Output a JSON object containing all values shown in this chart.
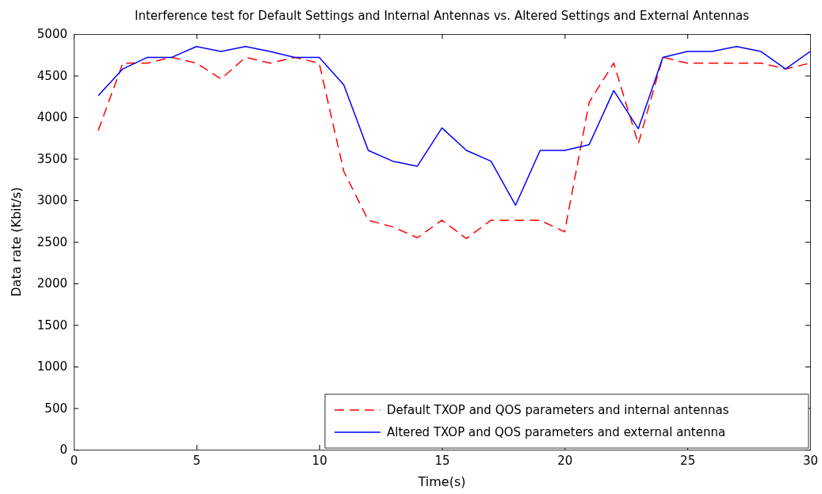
{
  "chart_data": {
    "type": "line",
    "title": "Interference test for Default Settings and Internal Antennas vs. Altered Settings and External Antennas",
    "xlabel": "Time(s)",
    "ylabel": "Data rate (Kbit/s)",
    "x": [
      1,
      2,
      3,
      4,
      5,
      6,
      7,
      8,
      9,
      10,
      11,
      12,
      13,
      14,
      15,
      16,
      17,
      18,
      19,
      20,
      21,
      22,
      23,
      24,
      25,
      26,
      27,
      28,
      29,
      30
    ],
    "xlim": [
      0,
      30
    ],
    "xticks": [
      0,
      5,
      10,
      15,
      20,
      25,
      30
    ],
    "ylim": [
      0,
      5000
    ],
    "yticks": [
      0,
      500,
      1000,
      1500,
      2000,
      2500,
      3000,
      3500,
      4000,
      4500,
      5000
    ],
    "grid": false,
    "legend": "bottom right",
    "marker": "none",
    "series": [
      {
        "name": "Default TXOP and QOS parameters and internal antennas",
        "color": "#ff0000",
        "line_style": "dashed",
        "values": [
          3840,
          4650,
          4650,
          4720,
          4650,
          4460,
          4720,
          4650,
          4720,
          4650,
          3350,
          2760,
          2680,
          2550,
          2760,
          2540,
          2760,
          2760,
          2760,
          2620,
          4180,
          4650,
          3680,
          4720,
          4650,
          4650,
          4650,
          4650,
          4580,
          4650
        ]
      },
      {
        "name": "Altered TXOP and QOS parameters and external antenna",
        "color": "#0000ff",
        "line_style": "solid",
        "values": [
          4260,
          4580,
          4720,
          4720,
          4850,
          4790,
          4850,
          4790,
          4720,
          4720,
          4390,
          3600,
          3470,
          3410,
          3870,
          3600,
          3470,
          2940,
          3600,
          3600,
          3670,
          4320,
          3860,
          4720,
          4790,
          4790,
          4850,
          4790,
          4580,
          4790
        ]
      }
    ]
  }
}
